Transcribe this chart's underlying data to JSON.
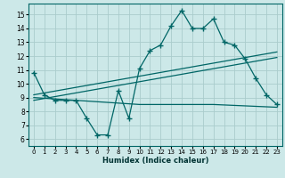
{
  "title": "",
  "xlabel": "Humidex (Indice chaleur)",
  "xlim": [
    -0.5,
    23.5
  ],
  "ylim": [
    5.5,
    15.8
  ],
  "yticks": [
    6,
    7,
    8,
    9,
    10,
    11,
    12,
    13,
    14,
    15
  ],
  "xticks": [
    0,
    1,
    2,
    3,
    4,
    5,
    6,
    7,
    8,
    9,
    10,
    11,
    12,
    13,
    14,
    15,
    16,
    17,
    18,
    19,
    20,
    21,
    22,
    23
  ],
  "bg_color": "#cce8e8",
  "grid_color": "#aacccc",
  "line_color": "#006666",
  "main_x": [
    0,
    1,
    2,
    3,
    4,
    5,
    6,
    7,
    8,
    9,
    10,
    11,
    12,
    13,
    14,
    15,
    16,
    17,
    18,
    19,
    20,
    21,
    22,
    23
  ],
  "main_y": [
    10.8,
    9.2,
    8.8,
    8.8,
    8.8,
    7.5,
    6.3,
    6.3,
    9.5,
    7.5,
    11.1,
    12.4,
    12.8,
    14.2,
    15.3,
    14.0,
    14.0,
    14.7,
    13.0,
    12.8,
    11.8,
    10.4,
    9.2,
    8.5
  ],
  "trend1_x": [
    0,
    23
  ],
  "trend1_y": [
    9.2,
    12.3
  ],
  "trend2_x": [
    0,
    23
  ],
  "trend2_y": [
    8.8,
    11.9
  ],
  "flat_x": [
    0,
    4,
    10,
    17,
    23
  ],
  "flat_y": [
    9.0,
    8.8,
    8.5,
    8.5,
    8.3
  ]
}
